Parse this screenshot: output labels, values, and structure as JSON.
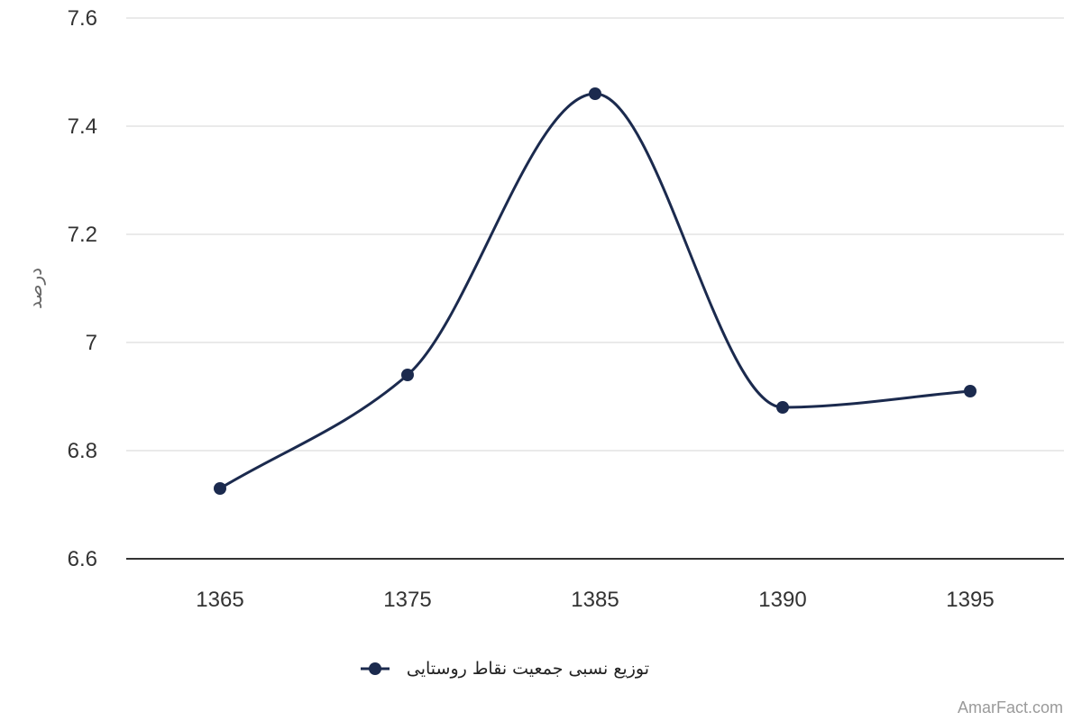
{
  "chart_data": {
    "type": "line",
    "title": "",
    "xlabel": "",
    "ylabel": "درصد",
    "categories": [
      "1365",
      "1375",
      "1385",
      "1390",
      "1395"
    ],
    "series": [
      {
        "name": "توزیع نسبی جمعیت نقاط روستایی",
        "values": [
          6.73,
          6.94,
          7.46,
          6.88,
          6.91
        ],
        "color": "#1b2a4e"
      }
    ],
    "ylim": [
      6.6,
      7.6
    ],
    "yticks": [
      6.6,
      6.8,
      7,
      7.2,
      7.4,
      7.6
    ],
    "ytick_labels": [
      "6.6",
      "6.8",
      "7",
      "7.2",
      "7.4",
      "7.6"
    ],
    "grid": true,
    "smooth": true,
    "legend_position": "bottom-center"
  },
  "credit": "AmarFact.com",
  "colors": {
    "gridline": "#e3e3e3",
    "axis": "#333333",
    "series": "#1b2a4e"
  }
}
